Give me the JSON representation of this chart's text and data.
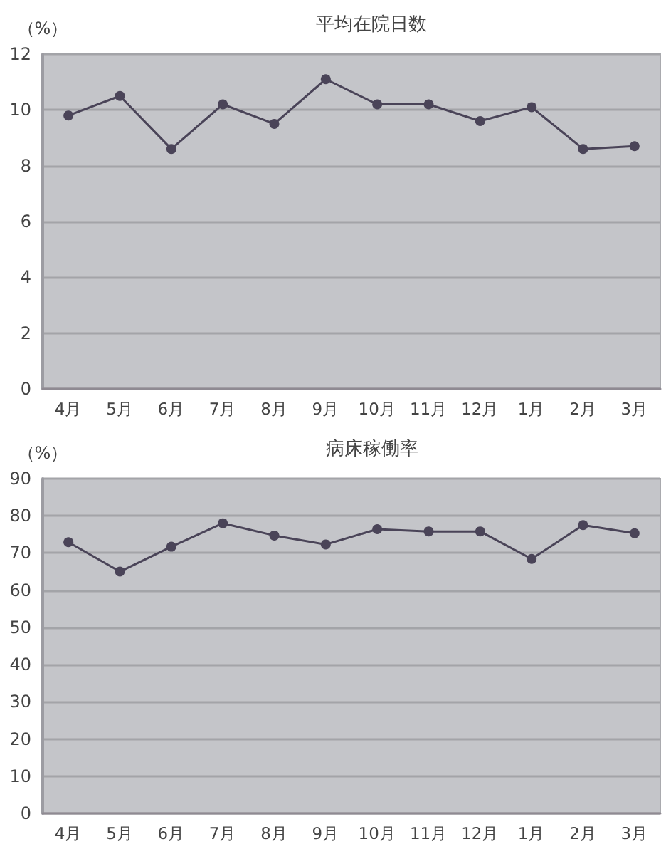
{
  "chart_data": [
    {
      "type": "line",
      "title": "平均在院日数",
      "ylabel": "（%）",
      "categories": [
        "4月",
        "5月",
        "6月",
        "7月",
        "8月",
        "9月",
        "10月",
        "11月",
        "12月",
        "1月",
        "2月",
        "3月"
      ],
      "series": [
        {
          "color": "#4a4458",
          "values": [
            9.8,
            10.5,
            8.6,
            10.2,
            9.5,
            11.1,
            10.2,
            10.2,
            9.6,
            10.1,
            8.6,
            8.7
          ]
        }
      ],
      "ylim": [
        0,
        12
      ],
      "yticks": [
        0,
        2,
        4,
        6,
        8,
        10,
        12
      ],
      "grid": "y",
      "marker": "circle",
      "line_style": "solid"
    },
    {
      "type": "line",
      "title": "病床稼働率",
      "ylabel": "（%）",
      "categories": [
        "4月",
        "5月",
        "6月",
        "7月",
        "8月",
        "9月",
        "10月",
        "11月",
        "12月",
        "1月",
        "2月",
        "3月"
      ],
      "series": [
        {
          "color": "#4a4458",
          "values": [
            72.9,
            65.0,
            71.7,
            78.0,
            74.7,
            72.3,
            76.4,
            75.8,
            75.8,
            68.4,
            77.5,
            75.3
          ]
        }
      ],
      "ylim": [
        0,
        90
      ],
      "yticks": [
        0,
        10,
        20,
        30,
        40,
        50,
        60,
        70,
        80,
        90
      ],
      "grid": "y",
      "marker": "circle",
      "line_style": "solid"
    }
  ]
}
